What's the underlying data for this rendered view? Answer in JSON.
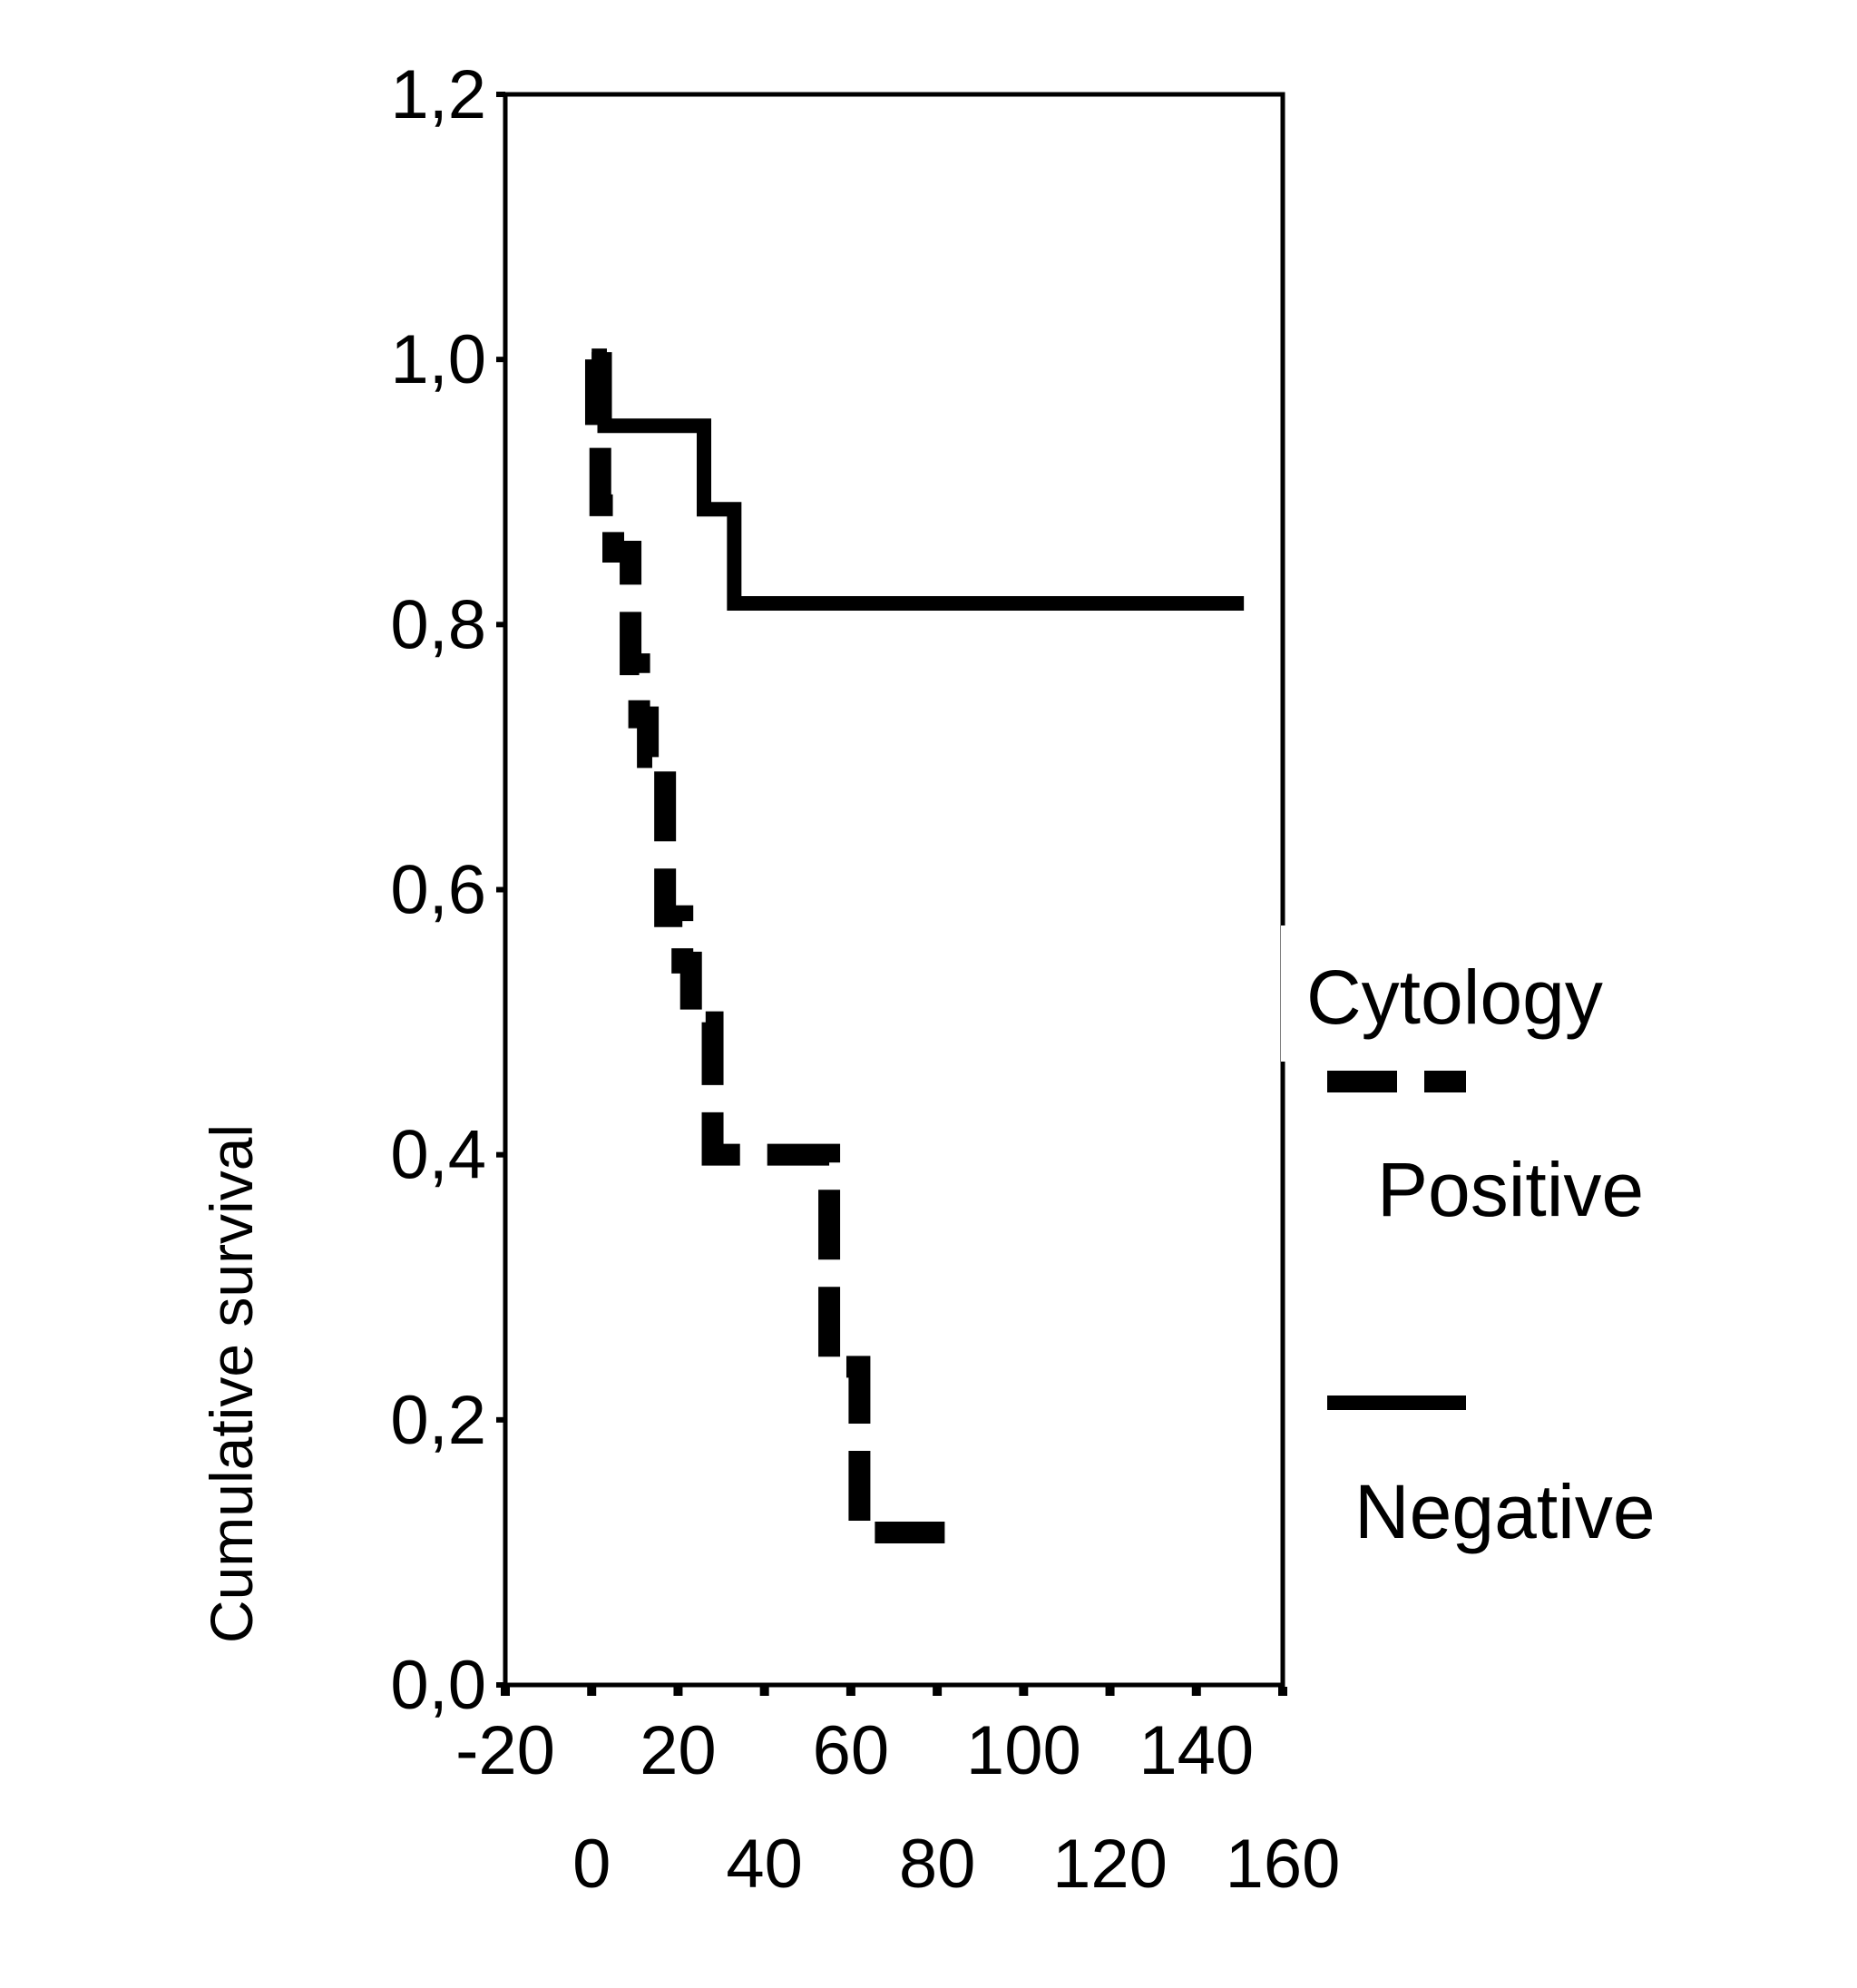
{
  "chart_data": {
    "type": "line",
    "step": true,
    "title": "",
    "xlabel": "",
    "ylabel": "Cumulative survival",
    "xlim": [
      -20,
      160
    ],
    "ylim": [
      0,
      1.2
    ],
    "x_ticks": [
      "-20",
      "0",
      "20",
      "40",
      "60",
      "80",
      "100",
      "120",
      "140",
      "160"
    ],
    "x_tick_values": [
      -20,
      0,
      20,
      40,
      60,
      80,
      100,
      120,
      140,
      160
    ],
    "y_ticks": [
      "0,0",
      "0,2",
      "0,4",
      "0,6",
      "0,8",
      "1,0",
      "1,2"
    ],
    "y_tick_values": [
      0,
      0.2,
      0.4,
      0.6,
      0.8,
      1.0,
      1.2
    ],
    "grid": false,
    "legend": {
      "title": "Cytology",
      "placement": "right"
    },
    "series": [
      {
        "name": "Positive",
        "style": "dashed",
        "color": "#000000",
        "x": [
          0,
          1,
          2,
          5,
          9,
          11,
          13,
          17,
          21,
          23,
          28,
          55,
          62,
          88
        ],
        "y": [
          1.0,
          0.935,
          0.89,
          0.855,
          0.77,
          0.73,
          0.7,
          0.58,
          0.545,
          0.5,
          0.4,
          0.24,
          0.115,
          0.115
        ]
      },
      {
        "name": "Negative",
        "style": "solid",
        "color": "#000000",
        "x": [
          0,
          3,
          26,
          33,
          151
        ],
        "y": [
          1.0,
          0.95,
          0.887,
          0.816,
          0.816
        ]
      }
    ]
  }
}
